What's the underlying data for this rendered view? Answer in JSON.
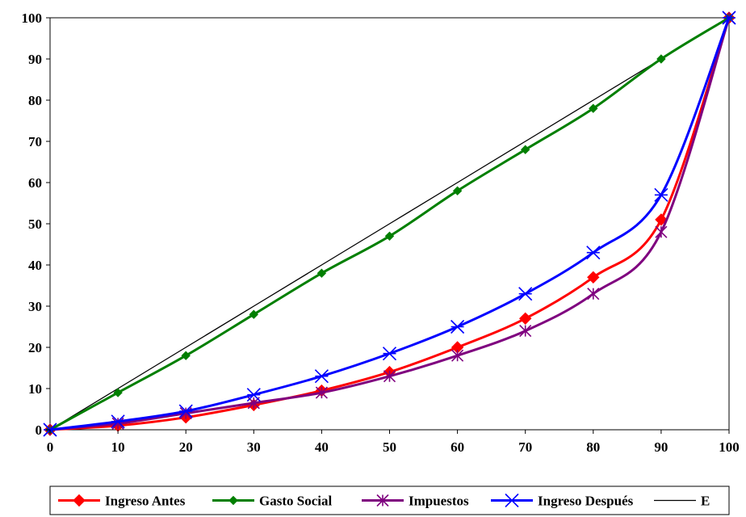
{
  "chart_data": {
    "type": "line",
    "title": "",
    "xlabel": "",
    "ylabel": "",
    "xlim": [
      0,
      100
    ],
    "ylim": [
      0,
      100
    ],
    "x_ticks": [
      0,
      10,
      20,
      30,
      40,
      50,
      60,
      70,
      80,
      90,
      100
    ],
    "y_ticks": [
      0,
      10,
      20,
      30,
      40,
      50,
      60,
      70,
      80,
      90,
      100
    ],
    "grid": false,
    "legend_position": "bottom",
    "x": [
      0,
      10,
      20,
      30,
      40,
      50,
      60,
      70,
      80,
      90,
      100
    ],
    "series": [
      {
        "name": "Ingreso Antes",
        "color": "#ff0000",
        "marker": "diamond",
        "values": [
          0,
          1,
          3,
          6,
          9.5,
          14,
          20,
          27,
          37,
          51,
          100
        ]
      },
      {
        "name": "Gasto Social",
        "color": "#007f00",
        "marker": "diamond-small",
        "values": [
          0,
          9,
          18,
          28,
          38,
          47,
          58,
          68,
          78,
          90,
          100
        ]
      },
      {
        "name": "Impuestos",
        "color": "#7f007f",
        "marker": "asterisk",
        "values": [
          0,
          1.5,
          4,
          6.5,
          9,
          13,
          18,
          24,
          33,
          48,
          100
        ]
      },
      {
        "name": "Ingreso Después",
        "color": "#0000ff",
        "marker": "star",
        "values": [
          0,
          2,
          4.5,
          8.5,
          13,
          18.5,
          25,
          33,
          43,
          57,
          100
        ]
      },
      {
        "name": "E",
        "color": "#000000",
        "marker": "none",
        "values": [
          0,
          10,
          20,
          30,
          40,
          50,
          60,
          70,
          80,
          90,
          100
        ]
      }
    ]
  }
}
